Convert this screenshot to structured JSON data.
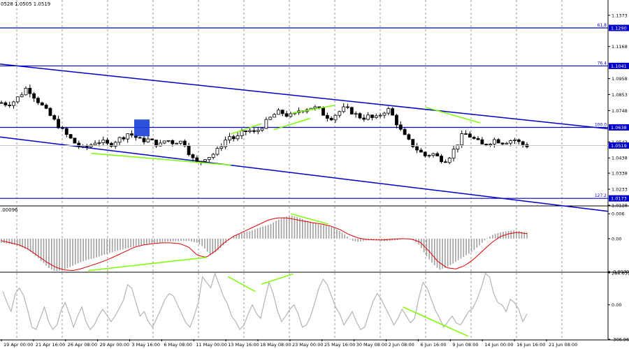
{
  "header": {
    "ohlc_text": "0528 1.0505 1.0519",
    "macd_text": ".00096"
  },
  "colors": {
    "background": "#ffffff",
    "candle": "#000000",
    "grid": "#9a9a9a",
    "level_line": "#0000c8",
    "channel_line": "#0000c8",
    "marker_box": "#1a3fd6",
    "price_tag_bg": "#0000c8",
    "divergence": "#7cfc00",
    "signal_line": "#e00000",
    "histogram": "#a0a0a0",
    "cci_line": "#b4b4b4"
  },
  "chart_data": [
    {
      "type": "candlestick",
      "title": "",
      "ylim": [
        1.0128,
        1.1473
      ],
      "ytick_labels": [
        "1.1373",
        "1.1168",
        "1.0958",
        "1.0853",
        "1.0748",
        "1.0543",
        "1.0438",
        "1.0338",
        "1.0233",
        "1.0128"
      ],
      "xtick_labels": [
        "19 Apr 00:00",
        "21 Apr 16:00",
        "26 Apr 08:00",
        "29 Apr 00:00",
        "3 May 16:00",
        "6 May 08:00",
        "11 May 00:00",
        "13 May 16:00",
        "18 May 08:00",
        "23 May 00:00",
        "25 May 16:00",
        "30 May 08:00",
        "2 Jun 08:00",
        "6 Jun 16:00",
        "9 Jun 08:00",
        "14 Jun 00:00",
        "16 Jun 16:00",
        "21 Jun 08:00"
      ],
      "close_path": [
        1.08,
        1.079,
        1.081,
        1.085,
        1.09,
        1.085,
        1.08,
        1.075,
        1.07,
        1.065,
        1.06,
        1.056,
        1.052,
        1.05,
        1.052,
        1.055,
        1.054,
        1.052,
        1.055,
        1.057,
        1.06,
        1.058,
        1.055,
        1.056,
        1.054,
        1.052,
        1.056,
        1.054,
        1.055,
        1.053,
        1.044,
        1.04,
        1.044,
        1.045,
        1.048,
        1.054,
        1.058,
        1.056,
        1.06,
        1.062,
        1.06,
        1.064,
        1.068,
        1.072,
        1.074,
        1.072,
        1.071,
        1.075,
        1.076,
        1.077,
        1.076,
        1.072,
        1.07,
        1.073,
        1.076,
        1.075,
        1.072,
        1.07,
        1.071,
        1.069,
        1.073,
        1.076,
        1.07,
        1.062,
        1.056,
        1.052,
        1.048,
        1.045,
        1.047,
        1.044,
        1.042,
        1.046,
        1.053,
        1.06,
        1.058,
        1.055,
        1.052,
        1.054,
        1.056,
        1.054,
        1.055,
        1.056,
        1.053,
        1.0519
      ],
      "horizontal_levels": [
        {
          "label": "61.8",
          "price": 1.129,
          "tag": "1.1290"
        },
        {
          "label": "76.4",
          "price": 1.1041,
          "tag": "1.1041"
        },
        {
          "label": "100.0",
          "price": 1.0638,
          "tag": "1.0638"
        },
        {
          "label": "127.2",
          "price": 1.0173,
          "tag": "1.0173"
        }
      ],
      "current_price_tag": "1.0519",
      "channel": {
        "upper": [
          [
            0,
            1.1053
          ],
          [
            1,
            1.0629
          ]
        ],
        "lower": [
          [
            0,
            1.0575
          ],
          [
            1,
            1.0088
          ]
        ]
      }
    },
    {
      "type": "macd",
      "title": "",
      "ylim": [
        -0.00791,
        0.00771
      ],
      "ytick_labels": [
        "0.006",
        "0.00",
        "-0.00791"
      ],
      "histogram_path": [
        -0.001,
        -0.0012,
        -0.0015,
        -0.002,
        -0.0028,
        -0.004,
        -0.0055,
        -0.007,
        -0.0079,
        -0.0076,
        -0.007,
        -0.0062,
        -0.0055,
        -0.005,
        -0.0046,
        -0.004,
        -0.0035,
        -0.003,
        -0.0026,
        -0.0022,
        -0.0018,
        -0.0015,
        -0.0012,
        -0.001,
        -0.0008,
        -0.0007,
        -0.0006,
        -0.0005,
        -0.0006,
        -0.001,
        -0.002,
        -0.004,
        -0.003,
        -0.0015,
        0.0,
        0.001,
        0.0015,
        0.0018,
        0.0025,
        0.003,
        0.0035,
        0.0045,
        0.0052,
        0.0056,
        0.0052,
        0.0045,
        0.004,
        0.0035,
        0.0032,
        0.003,
        0.002,
        0.001,
        -0.0005,
        -0.0008,
        -0.0005,
        -0.0002,
        -0.0004,
        -0.0006,
        -0.0005,
        -0.0003,
        0.0,
        -0.0002,
        -0.0015,
        -0.004,
        -0.006,
        -0.0075,
        -0.007,
        -0.006,
        -0.005,
        -0.004,
        -0.003,
        -0.0015,
        0.0,
        0.001,
        0.0015,
        0.0018,
        0.002,
        0.0018,
        0.0015
      ],
      "signal_path": [
        -0.0005,
        -0.001,
        -0.0015,
        -0.0025,
        -0.004,
        -0.0055,
        -0.0068,
        -0.0075,
        -0.0077,
        -0.0072,
        -0.0065,
        -0.0058,
        -0.005,
        -0.004,
        -0.003,
        -0.002,
        -0.0015,
        -0.0012,
        -0.001,
        -0.001,
        -0.0012,
        -0.002,
        -0.004,
        -0.0045,
        -0.003,
        -0.001,
        0.0005,
        0.0015,
        0.0025,
        0.0035,
        0.0045,
        0.005,
        0.005,
        0.0046,
        0.0042,
        0.0038,
        0.0035,
        0.003,
        0.0022,
        0.001,
        0.0002,
        -0.0002,
        -0.0003,
        -0.0003,
        -0.0001,
        0.0,
        -0.0001,
        -0.0008,
        -0.003,
        -0.0055,
        -0.007,
        -0.0073,
        -0.0065,
        -0.005,
        -0.003,
        -0.001,
        0.0005,
        0.0012,
        0.0015,
        0.0012
      ],
      "divergence_lines": [
        [
          [
            0.145,
            -0.0077
          ],
          [
            0.34,
            -0.0045
          ]
        ],
        [
          [
            0.478,
            0.006
          ],
          [
            0.54,
            0.0035
          ]
        ]
      ]
    },
    {
      "type": "line",
      "title": "",
      "ylim": [
        -306.964,
        284.6313
      ],
      "ytick_labels": [
        "284.6313",
        "0.00",
        "-306.964"
      ],
      "values": [
        120,
        20,
        -60,
        100,
        150,
        80,
        -50,
        -200,
        -220,
        -120,
        -20,
        -150,
        -220,
        -180,
        -50,
        20,
        -80,
        -200,
        -100,
        -20,
        -150,
        -220,
        -180,
        -100,
        -40,
        -90,
        -150,
        -100,
        -30,
        40,
        180,
        150,
        20,
        -100,
        -60,
        -150,
        -200,
        -120,
        -40,
        50,
        100,
        80,
        0,
        -80,
        -160,
        -200,
        -100,
        20,
        250,
        200,
        150,
        280,
        180,
        80,
        10,
        -100,
        -150,
        -220,
        -180,
        -80,
        0,
        -80,
        -120,
        50,
        200,
        100,
        -50,
        -150,
        -100,
        -40,
        0,
        -80,
        -200,
        -180,
        -100,
        20,
        150,
        230,
        180,
        80,
        -20,
        -80,
        -180,
        -120,
        -60,
        -150,
        -220,
        -200,
        -80,
        30,
        100,
        50,
        -30,
        -100,
        -180,
        -120,
        -40,
        -100,
        -160,
        -120,
        60,
        200,
        150,
        50,
        -50,
        -120,
        -200,
        -150,
        -100,
        -160,
        -180,
        -120,
        -60,
        -30,
        50,
        150,
        280,
        250,
        100,
        20,
        0,
        -60,
        50,
        20,
        -40,
        -150,
        -80
      ],
      "divergence_lines": [
        [
          [
            0.375,
            0.945
          ],
          [
            0.42,
            0.72
          ]
        ],
        [
          [
            0.43,
            0.83
          ],
          [
            0.482,
            0.985
          ]
        ],
        [
          [
            0.663,
            0.485
          ],
          [
            0.77,
            0.045
          ]
        ]
      ]
    }
  ]
}
